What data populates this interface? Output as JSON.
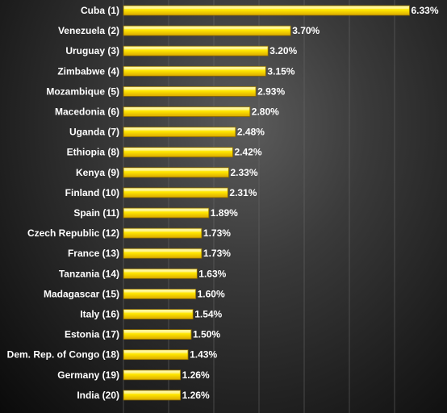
{
  "chart_data": {
    "type": "bar",
    "orientation": "horizontal",
    "title": "",
    "xlabel": "",
    "ylabel": "",
    "xlim": [
      0,
      6.5
    ],
    "grid": true,
    "legend": "none",
    "categories": [
      "Cuba (1)",
      "Venezuela (2)",
      "Uruguay (3)",
      "Zimbabwe (4)",
      "Mozambique (5)",
      "Macedonia (6)",
      "Uganda (7)",
      "Ethiopia (8)",
      "Kenya (9)",
      "Finland (10)",
      "Spain (11)",
      "Czech Republic (12)",
      "France (13)",
      "Tanzania (14)",
      "Madagascar (15)",
      "Italy (16)",
      "Estonia (17)",
      "Dem. Rep. of Congo (18)",
      "Germany (19)",
      "India (20)"
    ],
    "values": [
      6.33,
      3.7,
      3.2,
      3.15,
      2.93,
      2.8,
      2.48,
      2.42,
      2.33,
      2.31,
      1.89,
      1.73,
      1.73,
      1.63,
      1.6,
      1.54,
      1.5,
      1.43,
      1.26,
      1.26
    ],
    "value_labels": [
      "6.33%",
      "3.70%",
      "3.20%",
      "3.15%",
      "2.93%",
      "2.80%",
      "2.48%",
      "2.42%",
      "2.33%",
      "2.31%",
      "1.89%",
      "1.73%",
      "1.73%",
      "1.63%",
      "1.60%",
      "1.54%",
      "1.50%",
      "1.43%",
      "1.26%",
      "1.26%"
    ],
    "colors": {
      "bar_top": "#fff8a0",
      "bar_mid": "#ffe600",
      "bar_bottom": "#d9a800",
      "bar_stroke": "#8a6a00",
      "text": "#ffffff",
      "grid": "#6a6a6a"
    }
  }
}
